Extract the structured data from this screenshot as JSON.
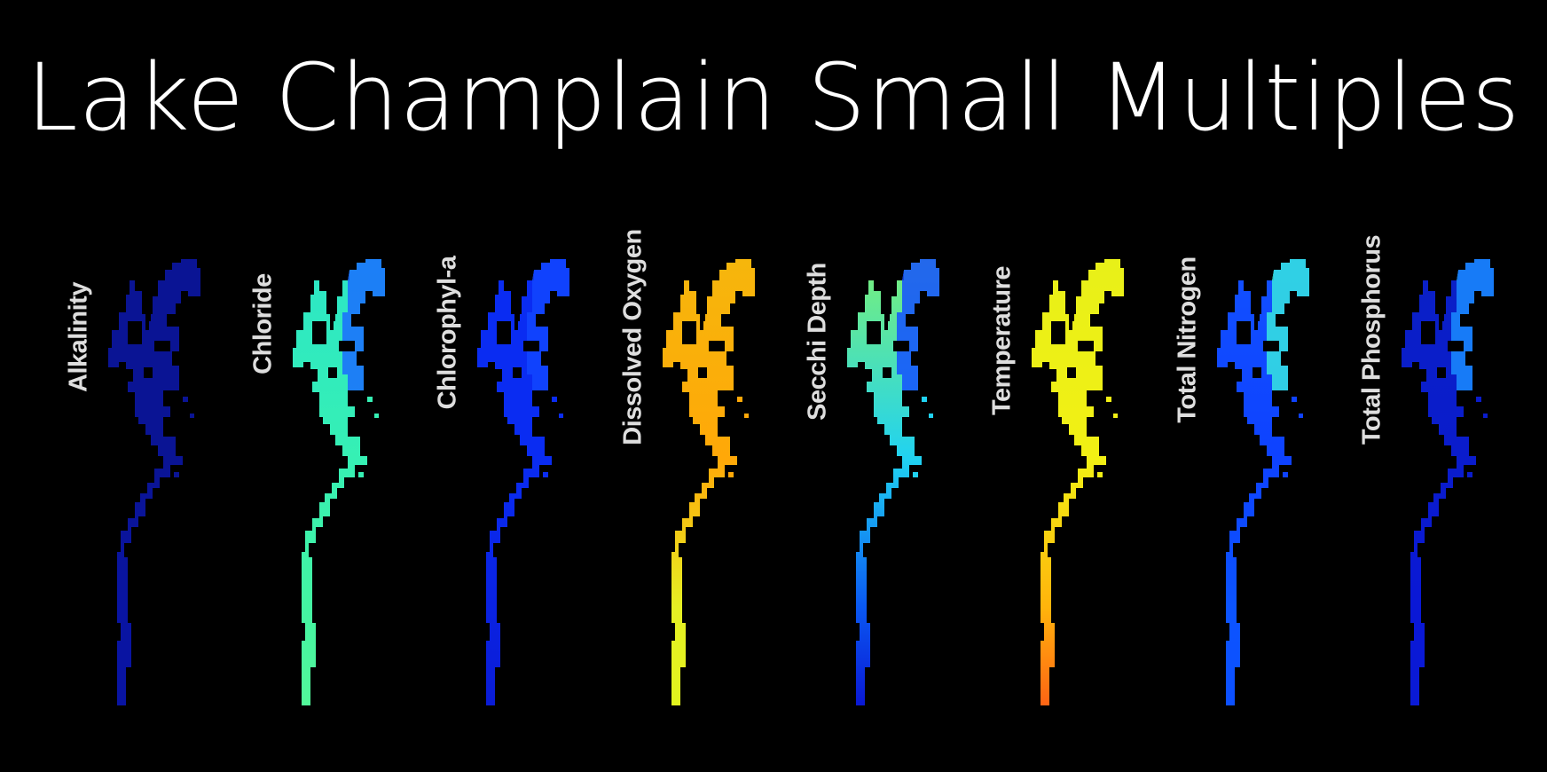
{
  "title": "Lake Champlain Small Multiples",
  "panels": [
    {
      "label": "Alkalinity",
      "colors": {
        "north": "#0a1494",
        "mid": "#0a1494",
        "south": "#0914a2",
        "tip": "#0914a2"
      }
    },
    {
      "label": "Chloride",
      "colors": {
        "north": "#2ce6c6",
        "mid": "#36f0b4",
        "south": "#44f4a2",
        "tip": "#52f89a",
        "bay": "#1a6cff"
      }
    },
    {
      "label": "Chlorophyl-a",
      "colors": {
        "north": "#0a2cf2",
        "mid": "#0a2cf2",
        "south": "#0a22e2",
        "tip": "#0a1cd6",
        "bay": "#1246ff"
      }
    },
    {
      "label": "Dissolved Oxygen",
      "colors": {
        "north": "#f6b60c",
        "mid": "#ffa808",
        "south": "#e6f024",
        "tip": "#e2f41e"
      }
    },
    {
      "label": "Secchi Depth",
      "colors": {
        "north": "#7af078",
        "mid": "#20d2f2",
        "south": "#0a58f2",
        "tip": "#0a18d4",
        "bay": "#1450ff"
      }
    },
    {
      "label": "Temperature",
      "colors": {
        "north": "#e8f018",
        "mid": "#f2f014",
        "south": "#ffb40c",
        "tip": "#ff6414"
      }
    },
    {
      "label": "Total Nitrogen",
      "colors": {
        "north": "#1250ff",
        "mid": "#0e42ff",
        "south": "#0c54ff",
        "tip": "#0c50ff",
        "bay": "#36e6e0"
      }
    },
    {
      "label": "Total Phosphorus",
      "colors": {
        "north": "#0a20c6",
        "mid": "#0a1ccc",
        "south": "#0a18d6",
        "tip": "#0a1ad6",
        "bay": "#1a8cff"
      }
    }
  ]
}
